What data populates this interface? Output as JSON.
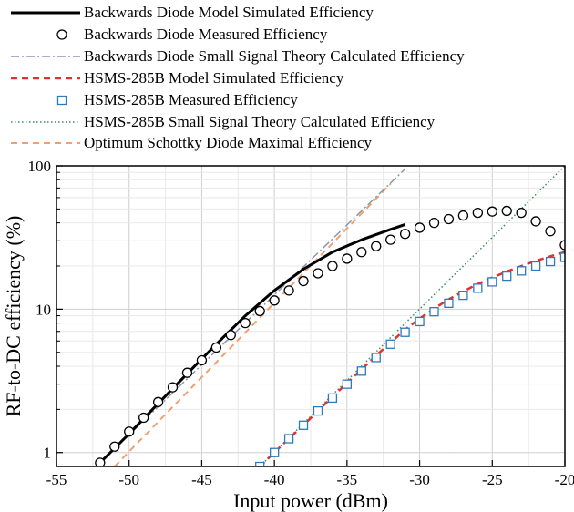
{
  "chart_data": {
    "type": "line",
    "title": "",
    "xlabel": "Input power (dBm)",
    "ylabel": "RF-to-DC efficiency (%)",
    "xlim": [
      -55,
      -20
    ],
    "ylim": [
      0.8,
      100
    ],
    "yscale": "log",
    "grid": true,
    "legend_position": "top",
    "x_ticks": [
      "-55",
      "-50",
      "-45",
      "-40",
      "-35",
      "-30",
      "-25",
      "-20"
    ],
    "y_ticks": [
      "1",
      "10",
      "100"
    ],
    "series": [
      {
        "name": "Backwards Diode Model Simulated Efficiency",
        "style": "solid",
        "color": "#000000",
        "width": 3,
        "x": [
          -52,
          -50,
          -48,
          -46,
          -44,
          -42,
          -40,
          -38,
          -36,
          -34,
          -32,
          -31
        ],
        "y": [
          0.85,
          1.35,
          2.2,
          3.55,
          5.7,
          9.0,
          13.5,
          19.0,
          25.0,
          30.5,
          36.0,
          39.0
        ]
      },
      {
        "name": "Backwards Diode Measured Efficiency",
        "style": "marker-circle",
        "color": "#000000",
        "x": [
          -52,
          -51,
          -50,
          -49,
          -48,
          -47,
          -46,
          -45,
          -44,
          -43,
          -42,
          -41,
          -40,
          -39,
          -38,
          -37,
          -36,
          -35,
          -34,
          -33,
          -32,
          -31,
          -30,
          -29,
          -28,
          -27,
          -26,
          -25,
          -24,
          -23,
          -22,
          -21,
          -20
        ],
        "y": [
          0.85,
          1.1,
          1.4,
          1.75,
          2.25,
          2.85,
          3.6,
          4.4,
          5.4,
          6.6,
          8.0,
          9.7,
          11.5,
          13.5,
          15.7,
          17.8,
          20.0,
          22.5,
          25.0,
          27.5,
          30.5,
          33.5,
          37.0,
          40.0,
          42.5,
          45.0,
          47.0,
          48.0,
          48.5,
          47.0,
          41.0,
          35.0,
          28.0
        ]
      },
      {
        "name": "Backwards Diode Small Signal Theory Calculated Efficiency",
        "style": "dashdot",
        "color": "#8a96b0",
        "x": [
          -52,
          -31
        ],
        "y": [
          0.85,
          95
        ]
      },
      {
        "name": "HSMS-285B Model Simulated Efficiency",
        "style": "dashed",
        "color": "#e03030",
        "width": 2.5,
        "x": [
          -41,
          -40,
          -39,
          -38,
          -37,
          -36,
          -35,
          -34,
          -33,
          -32,
          -31,
          -30,
          -29,
          -28,
          -27,
          -26,
          -25,
          -24,
          -23,
          -22,
          -21,
          -20
        ],
        "y": [
          0.8,
          1.0,
          1.25,
          1.55,
          1.95,
          2.45,
          3.05,
          3.8,
          4.75,
          5.85,
          7.2,
          8.6,
          10.1,
          11.7,
          13.3,
          15.0,
          16.6,
          18.3,
          20.0,
          21.7,
          23.4,
          25.0
        ]
      },
      {
        "name": "HSMS-285B Measured Efficiency",
        "style": "marker-square",
        "color": "#2a7cc0",
        "x": [
          -41,
          -40,
          -39,
          -38,
          -37,
          -36,
          -35,
          -34,
          -33,
          -32,
          -31,
          -30,
          -29,
          -28,
          -27,
          -26,
          -25,
          -24,
          -23,
          -22,
          -21,
          -20
        ],
        "y": [
          0.8,
          1.0,
          1.25,
          1.55,
          1.95,
          2.4,
          3.0,
          3.7,
          4.6,
          5.7,
          6.9,
          8.2,
          9.6,
          11.0,
          12.5,
          14.0,
          15.5,
          17.0,
          18.5,
          20.0,
          21.5,
          23.0
        ]
      },
      {
        "name": "HSMS-285B Small Signal Theory Calculated Efficiency",
        "style": "dotted",
        "color": "#3c8a5a",
        "x": [
          -41,
          -20
        ],
        "y": [
          0.8,
          100
        ]
      },
      {
        "name": "Optimum Schottky Diode Maximal Efficiency",
        "style": "dashed",
        "color": "#f0a070",
        "width": 2,
        "x": [
          -51,
          -32
        ],
        "y": [
          0.8,
          75
        ]
      }
    ]
  }
}
